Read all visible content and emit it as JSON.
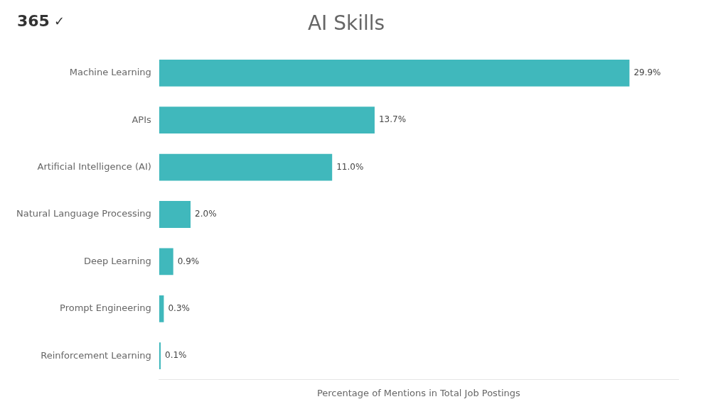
{
  "chart_data": {
    "type": "bar",
    "orientation": "horizontal",
    "title": "AI Skills",
    "categories": [
      "Machine Learning",
      "APIs",
      "Artificial Intelligence (AI)",
      "Natural Language Processing",
      "Deep Learning",
      "Prompt Engineering",
      "Reinforcement Learning"
    ],
    "values": [
      29.9,
      13.7,
      11.0,
      2.0,
      0.9,
      0.3,
      0.1
    ],
    "value_labels": [
      "29.9%",
      "13.7%",
      "11.0%",
      "2.0%",
      "0.9%",
      "0.3%",
      "0.1%"
    ],
    "data_labels": true,
    "color": "#40b8bc",
    "xlabel": "Percentage of Mentions in Total Job Postings",
    "xlim": [
      0,
      33
    ],
    "tick_labels": "y",
    "grid": false,
    "annotations": [
      "365",
      "✓"
    ]
  }
}
